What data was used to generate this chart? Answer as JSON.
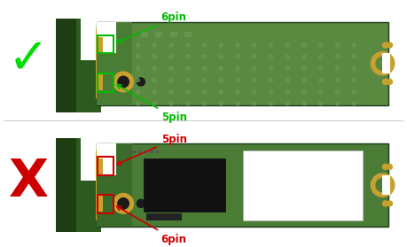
{
  "bg_color": "#ffffff",
  "top_ssd": {
    "board_color": "#3a6b2a",
    "board_color2": "#4a7c35",
    "label_5pin": "5pin",
    "label_6pin": "6pin",
    "box_color": "#cc0000",
    "x_mark_color": "#cc0000",
    "x_mark": "X"
  },
  "bot_ssd": {
    "board_color": "#4a7c35",
    "board_color2": "#5a8a40",
    "label_5pin": "5pin",
    "label_6pin": "6pin",
    "box_color": "#00bb00",
    "check_color": "#00dd00",
    "check_mark": "✓"
  },
  "connector_color": "#555555",
  "connector_dark": "#3a3a3a",
  "gold_color": "#c8a030",
  "hole_color": "#c8a030",
  "hole_inner": "#1a1a1a",
  "chip_color": "#111111",
  "chip2_color": "#222222",
  "white_label": "#ffffff",
  "right_dot_color": "#c8a030",
  "motherboard_color": "#2d5a1e",
  "motherboard_dark": "#1e3d12"
}
